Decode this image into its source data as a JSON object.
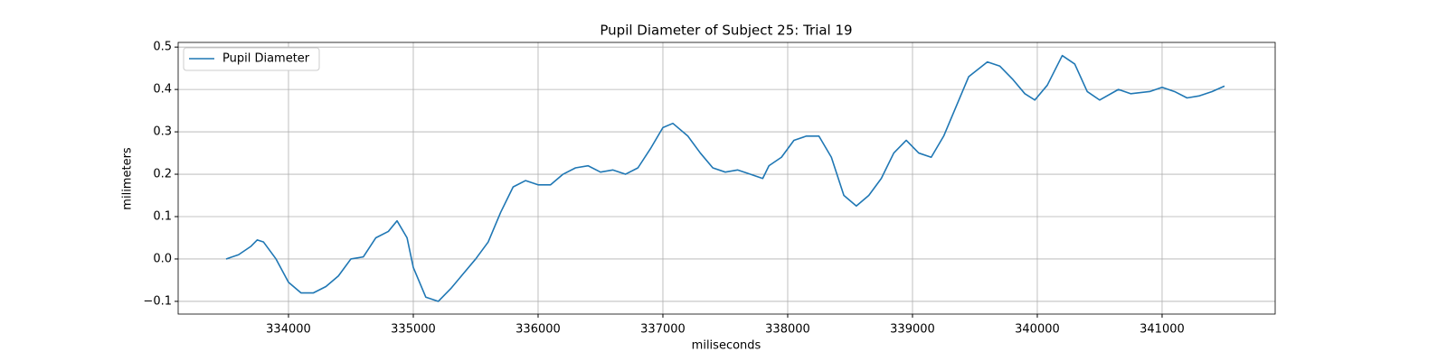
{
  "chart_data": {
    "type": "line",
    "title": "Pupil Diameter of Subject 25: Trial 19",
    "x_label": "miliseconds",
    "y_label": "milimeters",
    "x": [
      333500,
      333600,
      333700,
      333750,
      333800,
      333900,
      334000,
      334100,
      334200,
      334300,
      334400,
      334500,
      334600,
      334700,
      334800,
      334870,
      334950,
      335000,
      335100,
      335200,
      335300,
      335400,
      335500,
      335600,
      335700,
      335800,
      335900,
      336000,
      336100,
      336200,
      336300,
      336400,
      336500,
      336600,
      336700,
      336800,
      336900,
      337000,
      337080,
      337200,
      337300,
      337400,
      337500,
      337600,
      337700,
      337800,
      337850,
      337950,
      338050,
      338150,
      338250,
      338350,
      338450,
      338550,
      338650,
      338750,
      338850,
      338950,
      339050,
      339150,
      339250,
      339350,
      339450,
      339600,
      339700,
      339800,
      339900,
      339980,
      340080,
      340200,
      340300,
      340400,
      340500,
      340650,
      340750,
      340900,
      341000,
      341100,
      341200,
      341300,
      341400,
      341500
    ],
    "series": [
      {
        "name": "Pupil Diameter",
        "color": "#1f77b4",
        "values": [
          0.0,
          0.01,
          0.03,
          0.045,
          0.04,
          0.0,
          -0.055,
          -0.08,
          -0.08,
          -0.065,
          -0.04,
          0.0,
          0.005,
          0.05,
          0.065,
          0.09,
          0.05,
          -0.02,
          -0.09,
          -0.1,
          -0.07,
          -0.035,
          0.0,
          0.04,
          0.11,
          0.17,
          0.185,
          0.175,
          0.175,
          0.2,
          0.215,
          0.22,
          0.205,
          0.21,
          0.2,
          0.215,
          0.26,
          0.31,
          0.32,
          0.29,
          0.25,
          0.215,
          0.205,
          0.21,
          0.2,
          0.19,
          0.22,
          0.24,
          0.28,
          0.29,
          0.29,
          0.24,
          0.15,
          0.125,
          0.15,
          0.19,
          0.25,
          0.28,
          0.25,
          0.24,
          0.29,
          0.36,
          0.43,
          0.465,
          0.455,
          0.425,
          0.39,
          0.375,
          0.41,
          0.48,
          0.46,
          0.395,
          0.375,
          0.4,
          0.39,
          0.395,
          0.405,
          0.395,
          0.38,
          0.385,
          0.395,
          0.408
        ]
      }
    ],
    "xlim": [
      333116,
      341906
    ],
    "xticks": [
      334000,
      335000,
      336000,
      337000,
      338000,
      339000,
      340000,
      341000
    ],
    "ylim": [
      -0.13,
      0.511
    ],
    "yticks": [
      {
        "value": -0.1,
        "label": "−0.1"
      },
      {
        "value": 0,
        "label": "0.0"
      },
      0.1,
      0.2,
      0.3,
      0.4,
      0.5
    ],
    "grid": true,
    "legend": "upper-left"
  }
}
